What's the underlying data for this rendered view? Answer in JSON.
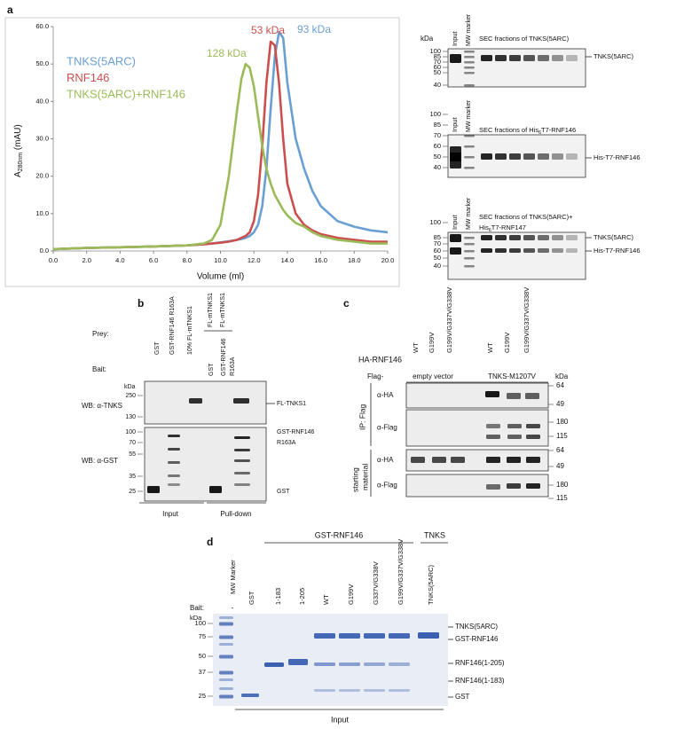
{
  "panel_labels": [
    "a",
    "b",
    "c",
    "d"
  ],
  "chart_data": {
    "type": "line",
    "x_label": "Volume (ml)",
    "y_label": [
      {
        "text": "A"
      },
      {
        "sub": "280nm"
      },
      {
        "text": " (mAU)"
      }
    ],
    "x": [
      0,
      2,
      4,
      6,
      8,
      9,
      9.5,
      10,
      10.5,
      11,
      11.25,
      11.5,
      11.75,
      12,
      12.25,
      12.5,
      12.75,
      13,
      13.25,
      13.5,
      13.75,
      14,
      14.5,
      15,
      15.5,
      16,
      17,
      18,
      19,
      20
    ],
    "series": [
      {
        "name": "TNKS(5ARC)",
        "color": "#6a9fd4",
        "values": [
          0.5,
          0.8,
          1,
          1.2,
          1.5,
          1.8,
          2,
          2.3,
          2.6,
          3,
          3.2,
          3.5,
          4,
          5,
          7,
          12,
          22,
          38,
          52,
          58.5,
          57,
          45,
          30,
          22,
          16,
          12,
          8,
          6.5,
          5.5,
          5
        ]
      },
      {
        "name": "RNF146",
        "color": "#c9504f",
        "values": [
          0.5,
          0.8,
          1,
          1.2,
          1.5,
          1.8,
          2,
          2.2,
          2.5,
          3,
          3.5,
          4,
          5,
          8,
          15,
          28,
          45,
          56,
          55,
          45,
          30,
          18,
          10,
          7,
          5.5,
          4.5,
          3.5,
          3,
          2.5,
          2.5
        ]
      },
      {
        "name": "TNKS(5ARC)+RNF146",
        "color": "#9bbb59",
        "values": [
          0.5,
          0.8,
          1,
          1.2,
          1.5,
          2,
          3,
          7,
          20,
          38,
          46,
          50,
          49,
          44,
          36,
          28,
          22,
          18,
          15,
          13,
          11,
          9.5,
          7.5,
          6.5,
          5,
          4,
          3,
          2.5,
          2,
          2
        ]
      }
    ],
    "annotations": [
      "93 kDa",
      "53 kDa",
      "128 kDa"
    ],
    "xlim": [
      0,
      20
    ],
    "ylim": [
      0,
      60
    ],
    "xticks": [
      {
        "value": 0,
        "label": "0.0"
      },
      {
        "value": 2,
        "label": "2.0"
      },
      {
        "value": 4,
        "label": "4.0"
      },
      {
        "value": 6,
        "label": "6.0"
      },
      {
        "value": 8,
        "label": "8.0"
      },
      {
        "value": 10,
        "label": "10.0"
      },
      {
        "value": 12,
        "label": "12.0"
      },
      {
        "value": 14,
        "label": "14.0"
      },
      {
        "value": 16,
        "label": "16.0"
      },
      {
        "value": 18,
        "label": "18.0"
      },
      {
        "value": 20,
        "label": "20.0"
      }
    ],
    "yticks": [
      {
        "value": 0,
        "label": "0.0"
      },
      {
        "value": 10,
        "label": "10.0"
      },
      {
        "value": 20,
        "label": "20.0"
      },
      {
        "value": 30,
        "label": "30.0"
      },
      {
        "value": 40,
        "label": "40.0"
      },
      {
        "value": 50,
        "label": "50.0"
      },
      {
        "value": 60,
        "label": "60.0"
      }
    ],
    "grid": false
  },
  "panel_a_gels": [
    {
      "kda": "kDa",
      "input": "Input",
      "marker": "MW marker",
      "caption": [
        [
          {
            "text": "SEC fractions of TNKS(5ARC)"
          }
        ]
      ],
      "ladder": [
        "100",
        "85",
        "70",
        "60",
        "50",
        "40"
      ],
      "right_labels": [
        "TNKS(5ARC)"
      ]
    },
    {
      "input": "Input",
      "marker": "MW marker",
      "caption": [
        [
          {
            "text": "SEC fractions of His"
          },
          {
            "sub": "6"
          },
          {
            "text": "T7-RNF146"
          }
        ]
      ],
      "ladder": [
        "100",
        "85",
        "70",
        "60",
        "50",
        "40"
      ],
      "right_labels": [
        "His-T7-RNF146"
      ]
    },
    {
      "input": "Input",
      "marker": "MW marker",
      "caption": [
        [
          {
            "text": "SEC fractions of TNKS(5ARC)+"
          }
        ],
        [
          {
            "text": "His"
          },
          {
            "sub": "6"
          },
          {
            "text": "T7-RNF147"
          }
        ]
      ],
      "ladder": [
        "100",
        "85",
        "70",
        "60",
        "50",
        "40"
      ],
      "right_labels": [
        "TNKS(5ARC)",
        "His-T7-RNF146"
      ]
    }
  ],
  "panel_b": {
    "prey_label": "Prey:",
    "bait_label": "Bait:",
    "input_lanes": [
      "GST",
      "GST-RNF146 R163A",
      "10% FL-mTNKS1"
    ],
    "pulldown_prey": [
      "FL-mTNKS1",
      "FL-mTNKS1"
    ],
    "pulldown_bait": [
      [
        "GST"
      ],
      [
        "GST-RNF146",
        "R163A"
      ]
    ],
    "blots": [
      {
        "label": "WB: α-TNKS",
        "kda": "kDa",
        "ladder": [
          "250",
          "130"
        ],
        "right_labels": [
          [
            "FL-TNKS1"
          ]
        ]
      },
      {
        "label": "WB: α-GST",
        "ladder": [
          "100",
          "70",
          "55",
          "35",
          "25"
        ],
        "right_labels": [
          [
            "GST-RNF146",
            "R163A"
          ],
          [
            "GST"
          ]
        ]
      }
    ],
    "groups": [
      "Input",
      "Pull-down"
    ]
  },
  "panel_c": {
    "lanes": [
      "WT",
      "G199V",
      "G199V/G337V/G338V",
      "WT",
      "G199V",
      "G199V/G337V/G338V"
    ],
    "ha_label": "HA-RNF146",
    "flag_label": "Flag-",
    "flag_groups": [
      "empty vector",
      "TNKS-M1207V"
    ],
    "kda": "kDa",
    "blots": [
      {
        "label": "α-HA",
        "ladder": [
          "64",
          "49"
        ]
      },
      {
        "label": "α-Flag",
        "ladder": [
          "180",
          "115"
        ]
      },
      {
        "label": "α-HA",
        "ladder": [
          "64",
          "49"
        ]
      },
      {
        "label": "α-Flag",
        "ladder": [
          "180",
          "115"
        ]
      }
    ],
    "sections": [
      [
        "IP: Flag"
      ],
      [
        "starting",
        "material"
      ]
    ]
  },
  "panel_d": {
    "groups": [
      "GST-RNF146",
      "TNKS"
    ],
    "bait_label": "Bait:",
    "kda": "kDa",
    "marker_lane_label": "MW Marker",
    "marker_dash": "-",
    "lanes": [
      "GST",
      "1-183",
      "1-205",
      "WT",
      "G199V",
      "G337V/G338V",
      "G199V/G337V/G338V",
      "TNKS(5ARC)"
    ],
    "ladder": [
      "100",
      "75",
      "50",
      "37",
      "25"
    ],
    "right_labels": [
      "TNKS(5ARC)",
      "GST-RNF146",
      "RNF146(1-205)",
      "RNF146(1-183)",
      "GST"
    ],
    "footer": "Input"
  }
}
